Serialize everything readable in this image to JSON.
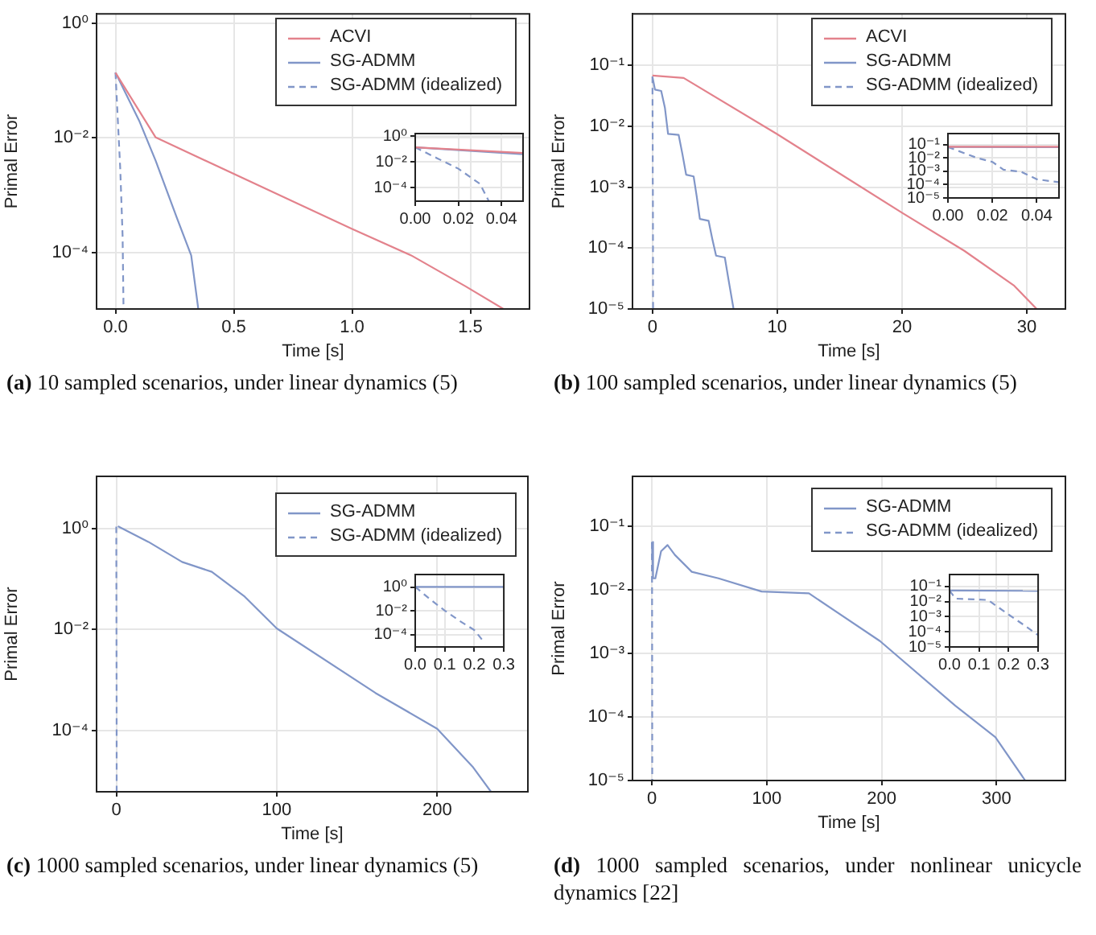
{
  "chart_data": [
    {
      "type": "line",
      "xlabel": "Time [s]",
      "ylabel": "Primal Error",
      "log": "y",
      "grid": true,
      "legend": "top right",
      "xlim": [
        -0.08,
        1.75
      ],
      "xticks": [
        {
          "value": 0,
          "label": "0.0"
        },
        {
          "value": 0.5,
          "label": "0.5"
        },
        {
          "value": 1,
          "label": "1.0"
        },
        {
          "value": 1.5,
          "label": "1.5"
        }
      ],
      "ylim": [
        1.05e-05,
        1.45
      ],
      "yticks": [
        {
          "value": 1,
          "label": "10⁰"
        },
        {
          "value": 0.01,
          "label": "10⁻²"
        },
        {
          "value": 0.0001,
          "label": "10⁻⁴"
        }
      ],
      "annotations": [
        "(a)",
        "10 sampled scenarios, under linear dynamics (5)"
      ],
      "series": [
        {
          "name": "ACVI",
          "color": "#e3828c",
          "x": [
            0,
            0.17,
            1.0,
            1.25,
            1.48,
            1.64
          ],
          "values": [
            0.137,
            0.0102,
            0.00026,
            9e-05,
            2.6e-05,
            1.05e-05
          ]
        },
        {
          "name": "SG-ADMM",
          "color": "#8196c8",
          "x": [
            0,
            0.1,
            0.17,
            0.26,
            0.32,
            0.35
          ],
          "values": [
            0.137,
            0.02,
            0.004,
            0.0004,
            9e-05,
            1.05e-05
          ]
        },
        {
          "name": "SG-ADMM (idealized)",
          "color": "#8196c8",
          "line_style": "dashed",
          "x": [
            0,
            0.01,
            0.02,
            0.03,
            0.034
          ],
          "values": [
            0.137,
            0.02,
            0.003,
            0.0002,
            1.05e-05
          ]
        }
      ]
    },
    {
      "type": "line",
      "log": "y",
      "grid": true,
      "xlim": [
        0,
        0.05
      ],
      "xticks": [
        {
          "value": 0,
          "label": "0.00"
        },
        {
          "value": 0.02,
          "label": "0.02"
        },
        {
          "value": 0.04,
          "label": "0.04"
        }
      ],
      "ylim": [
        9e-06,
        1.6
      ],
      "yticks": [
        {
          "value": 1,
          "label": "10⁰"
        },
        {
          "value": 0.01,
          "label": "10⁻²"
        },
        {
          "value": 0.0001,
          "label": "10⁻⁴"
        }
      ],
      "series": [
        {
          "color": "#e3828c",
          "x": [
            0,
            0.05
          ],
          "values": [
            0.137,
            0.05
          ]
        },
        {
          "color": "#8196c8",
          "x": [
            0,
            0.05
          ],
          "values": [
            0.137,
            0.04
          ]
        },
        {
          "color": "#8196c8",
          "line_style": "dashed",
          "x": [
            0,
            0.01,
            0.02,
            0.03,
            0.034
          ],
          "values": [
            0.137,
            0.02,
            0.003,
            0.0002,
            1e-05
          ]
        }
      ]
    },
    {
      "type": "line",
      "xlabel": "Time [s]",
      "ylabel": "Primal Error",
      "log": "y",
      "grid": true,
      "legend": "top right",
      "xlim": [
        -1.6,
        33.1
      ],
      "xticks": [
        0,
        10,
        20,
        30
      ],
      "ylim": [
        1e-05,
        0.7
      ],
      "yticks": [
        {
          "value": 0.1,
          "label": "10⁻¹"
        },
        {
          "value": 0.01,
          "label": "10⁻²"
        },
        {
          "value": 0.001,
          "label": "10⁻³"
        },
        {
          "value": 0.0001,
          "label": "10⁻⁴"
        },
        {
          "value": 1e-05,
          "label": "10⁻⁵"
        }
      ],
      "annotations": [
        "(b)",
        "100 sampled scenarios, under linear dynamics (5)"
      ],
      "series": [
        {
          "name": "ACVI",
          "color": "#e3828c",
          "x": [
            0,
            2.5,
            10,
            20,
            25,
            29,
            30.8
          ],
          "values": [
            0.068,
            0.062,
            0.0074,
            0.00038,
            9e-05,
            2.4e-05,
            1e-05
          ]
        },
        {
          "name": "SG-ADMM",
          "color": "#8196c8",
          "x": [
            0,
            0.2,
            0.7,
            1.0,
            1.25,
            2.1,
            2.4,
            2.7,
            3.3,
            3.55,
            3.8,
            4.5,
            4.8,
            5.1,
            5.8,
            6.1,
            6.5
          ],
          "values": [
            0.065,
            0.04,
            0.038,
            0.02,
            0.0075,
            0.0072,
            0.0035,
            0.0016,
            0.0015,
            0.0007,
            0.0003,
            0.00028,
            0.00014,
            7.5e-05,
            7e-05,
            3e-05,
            1e-05
          ]
        },
        {
          "name": "SG-ADMM (idealized)",
          "color": "#8196c8",
          "line_style": "dashed",
          "x": [
            0,
            0.013,
            0.02,
            0.025,
            0.033,
            0.04,
            0.05
          ],
          "values": [
            0.065,
            0.01,
            0.005,
            0.0013,
            0.0009,
            0.00025,
            1e-05
          ]
        }
      ]
    },
    {
      "type": "line",
      "log": "y",
      "grid": true,
      "xlim": [
        0,
        0.05
      ],
      "xticks": [
        {
          "value": 0,
          "label": "0.00"
        },
        {
          "value": 0.02,
          "label": "0.02"
        },
        {
          "value": 0.04,
          "label": "0.04"
        }
      ],
      "ylim": [
        1e-05,
        0.66
      ],
      "yticks": [
        {
          "value": 0.1,
          "label": "10⁻¹"
        },
        {
          "value": 0.01,
          "label": "10⁻²"
        },
        {
          "value": 0.001,
          "label": "10⁻³"
        },
        {
          "value": 0.0001,
          "label": "10⁻⁴"
        },
        {
          "value": 1e-05,
          "label": "10⁻⁵"
        }
      ],
      "series": [
        {
          "color": "#e3828c",
          "x": [
            0,
            0.05
          ],
          "values": [
            0.068,
            0.068
          ]
        },
        {
          "color": "#8196c8",
          "x": [
            0,
            0.05
          ],
          "values": [
            0.065,
            0.064
          ]
        },
        {
          "color": "#8196c8",
          "line_style": "dashed",
          "x": [
            0,
            0.013,
            0.02,
            0.025,
            0.033,
            0.04,
            0.05
          ],
          "values": [
            0.065,
            0.01,
            0.005,
            0.0013,
            0.0009,
            0.00025,
            0.00015
          ]
        }
      ]
    },
    {
      "type": "line",
      "xlabel": "Time [s]",
      "ylabel": "Primal Error",
      "log": "y",
      "grid": true,
      "legend": "top right",
      "xlim": [
        -12.3,
        256.5
      ],
      "xticks": [
        0,
        100,
        200
      ],
      "ylim": [
        6e-06,
        11
      ],
      "yticks": [
        {
          "value": 1,
          "label": "10⁰"
        },
        {
          "value": 0.01,
          "label": "10⁻²"
        },
        {
          "value": 0.0001,
          "label": "10⁻⁴"
        }
      ],
      "annotations": [
        "(c)",
        "1000 sampled scenarios, under linear dynamics (5)"
      ],
      "series": [
        {
          "name": "SG-ADMM",
          "color": "#8196c8",
          "x": [
            1,
            20,
            41,
            59.5,
            80,
            100,
            161.5,
            200,
            222,
            233.5
          ],
          "values": [
            1.12,
            0.55,
            0.22,
            0.14,
            0.045,
            0.0105,
            0.00055,
            0.000107,
            1.9e-05,
            6e-06
          ]
        },
        {
          "name": "SG-ADMM (idealized)",
          "color": "#8196c8",
          "line_style": "dashed",
          "x": [
            0,
            0.05,
            0.1,
            0.15,
            0.2,
            0.23
          ],
          "values": [
            1.1,
            0.1,
            0.011,
            0.0015,
            0.00025,
            6e-06
          ]
        }
      ]
    },
    {
      "type": "line",
      "log": "y",
      "grid": true,
      "xlim": [
        0,
        0.3
      ],
      "xticks": [
        {
          "value": 0,
          "label": "0.0"
        },
        {
          "value": 0.1,
          "label": "0.1"
        },
        {
          "value": 0.2,
          "label": "0.2"
        },
        {
          "value": 0.3,
          "label": "0.3"
        }
      ],
      "ylim": [
        9.5e-06,
        12
      ],
      "yticks": [
        {
          "value": 1,
          "label": "10⁰"
        },
        {
          "value": 0.01,
          "label": "10⁻²"
        },
        {
          "value": 0.0001,
          "label": "10⁻⁴"
        }
      ],
      "series": [
        {
          "color": "#8196c8",
          "x": [
            0,
            0.3
          ],
          "values": [
            1.1,
            1.08
          ]
        },
        {
          "color": "#8196c8",
          "line_style": "dashed",
          "x": [
            0,
            0.05,
            0.1,
            0.15,
            0.2,
            0.23
          ],
          "values": [
            1.1,
            0.1,
            0.011,
            0.0015,
            0.00025,
            3e-05
          ]
        }
      ]
    },
    {
      "type": "line",
      "xlabel": "Time [s]",
      "ylabel": "Primal Error",
      "log": "y",
      "grid": true,
      "legend": "top right",
      "xlim": [
        -16.9,
        360
      ],
      "xticks": [
        0,
        100,
        200,
        300
      ],
      "ylim": [
        1e-05,
        0.6
      ],
      "yticks": [
        {
          "value": 0.1,
          "label": "10⁻¹"
        },
        {
          "value": 0.01,
          "label": "10⁻²"
        },
        {
          "value": 0.001,
          "label": "10⁻³"
        },
        {
          "value": 0.0001,
          "label": "10⁻⁴"
        },
        {
          "value": 1e-05,
          "label": "10⁻⁵"
        }
      ],
      "annotations": [
        "(d)",
        "1000 sampled scenarios, under nonlinear unicycle dynamics [22]"
      ],
      "series": [
        {
          "name": "SG-ADMM",
          "color": "#8196c8",
          "x": [
            0,
            1,
            3,
            8,
            13.6,
            20,
            34.7,
            58,
            95.5,
            136.7,
            198.6,
            264,
            299,
            325
          ],
          "values": [
            0.056,
            0.015,
            0.015,
            0.04,
            0.05,
            0.035,
            0.019,
            0.015,
            0.0093,
            0.0087,
            0.00155,
            0.00015,
            4.8e-05,
            1e-05
          ]
        },
        {
          "name": "SG-ADMM (idealized)",
          "color": "#8196c8",
          "line_style": "dashed",
          "x": [
            0,
            0.02,
            0.13,
            0.2,
            0.25,
            0.3
          ],
          "values": [
            0.055,
            0.016,
            0.013,
            0.0014,
            0.0003,
            1e-05
          ]
        }
      ]
    },
    {
      "type": "line",
      "log": "y",
      "grid": true,
      "xlim": [
        0,
        0.3
      ],
      "xticks": [
        {
          "value": 0,
          "label": "0.0"
        },
        {
          "value": 0.1,
          "label": "0.1"
        },
        {
          "value": 0.2,
          "label": "0.2"
        },
        {
          "value": 0.3,
          "label": "0.3"
        }
      ],
      "ylim": [
        1e-05,
        0.63
      ],
      "yticks": [
        {
          "value": 0.1,
          "label": "10⁻¹"
        },
        {
          "value": 0.01,
          "label": "10⁻²"
        },
        {
          "value": 0.001,
          "label": "10⁻³"
        },
        {
          "value": 0.0001,
          "label": "10⁻⁴"
        },
        {
          "value": 1e-05,
          "label": "10⁻⁵"
        }
      ],
      "series": [
        {
          "color": "#8196c8",
          "x": [
            0,
            0.3
          ],
          "values": [
            0.055,
            0.052
          ]
        },
        {
          "color": "#8196c8",
          "line_style": "dashed",
          "x": [
            0,
            0.02,
            0.13,
            0.2,
            0.25,
            0.3
          ],
          "values": [
            0.055,
            0.016,
            0.013,
            0.0014,
            0.0003,
            6e-05
          ]
        }
      ]
    }
  ]
}
